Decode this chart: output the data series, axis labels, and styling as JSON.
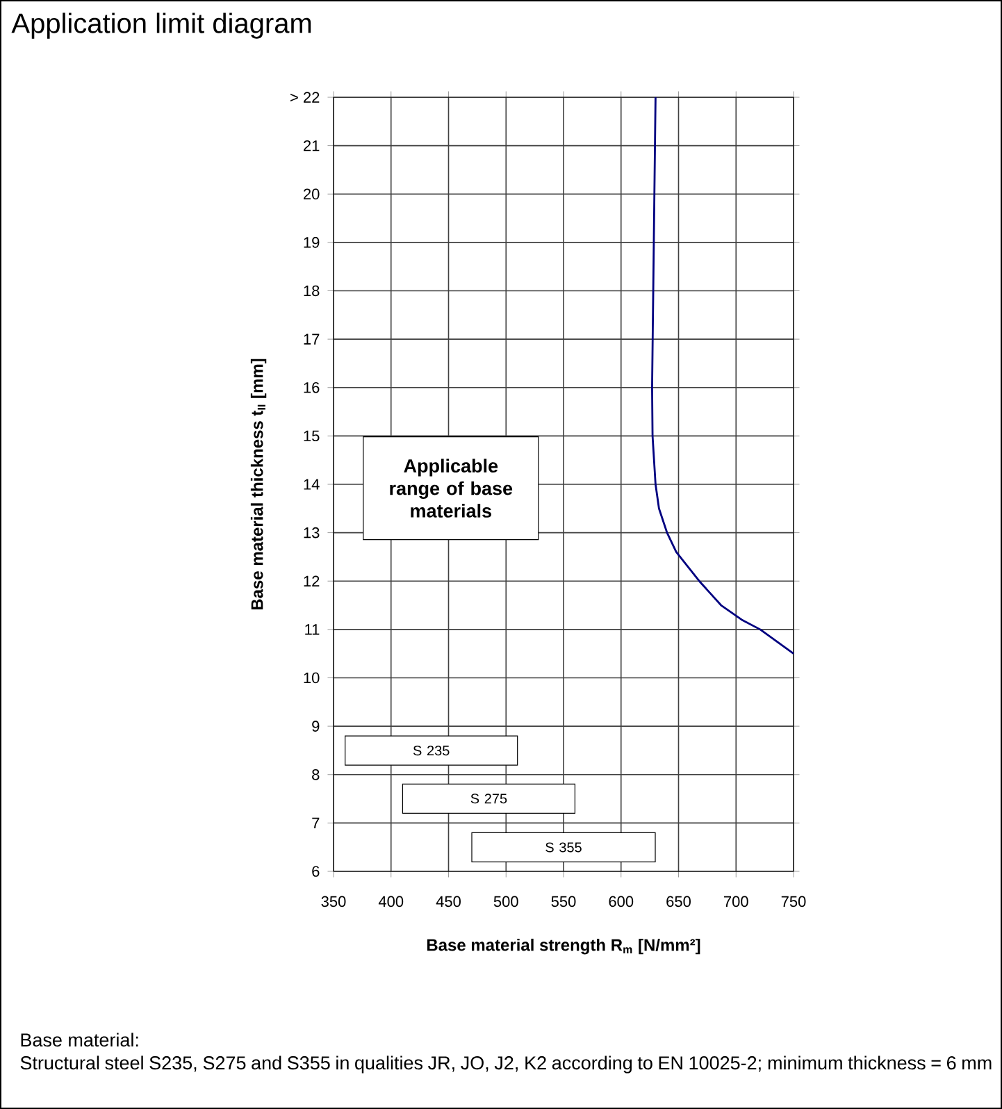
{
  "chart_data": {
    "type": "line",
    "title": "Application limit diagram",
    "xlabel": "**Base material strength R$_{m}$ [N/mm²]**",
    "ylabel": "**Base material thickness t$_{II}$ [mm]**",
    "xlim": [
      350,
      750
    ],
    "xticks": [
      350,
      400,
      450,
      500,
      550,
      600,
      650,
      700,
      750
    ],
    "ylim": [
      6,
      22
    ],
    "yticks": [
      6,
      7,
      8,
      9,
      10,
      11,
      12,
      13,
      14,
      15,
      16,
      17,
      18,
      19,
      20,
      21,
      {
        "value": 22,
        "label": "> 22"
      }
    ],
    "grid": true,
    "marker": "none",
    "line_style": "solid",
    "series": [
      {
        "color": "#000080",
        "x": [
          630,
          629,
          628,
          627,
          627.4,
          630,
          633,
          640,
          648,
          668,
          687,
          705,
          721,
          750
        ],
        "values": [
          22,
          20,
          18,
          16,
          15,
          14,
          13.5,
          13,
          12.6,
          12,
          11.5,
          11.2,
          11,
          10.5
        ]
      }
    ],
    "annotations": [
      "**Applicable range of base materials**",
      "S 235",
      "S 275",
      "S 355",
      "Base material:",
      "Structural steel S235, S275 and S355 in qualities JR, JO, J2, K2 according to EN 10025-2; minimum thickness = 6 mm"
    ]
  }
}
